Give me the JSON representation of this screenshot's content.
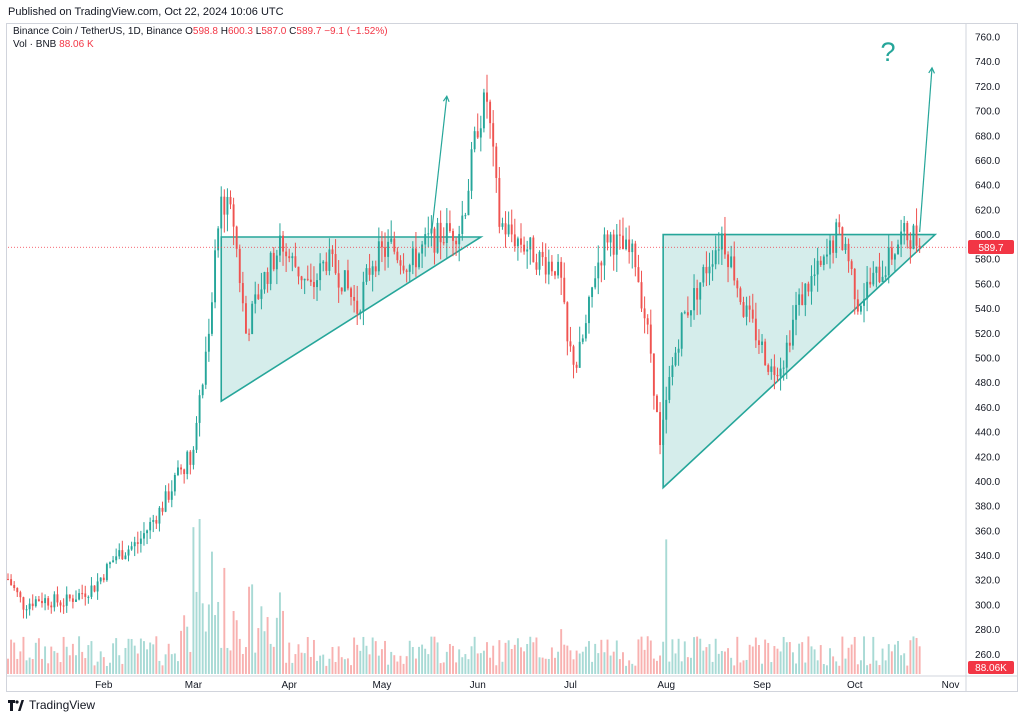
{
  "header": {
    "published": "Published on TradingView.com, Oct 22, 2024 10:06 UTC"
  },
  "legend": {
    "symbol": "Binance Coin / TetherUS, 1D, Binance",
    "open_label": "O",
    "open": "598.8",
    "high_label": "H",
    "high": "600.3",
    "low_label": "L",
    "low": "587.0",
    "close_label": "C",
    "close": "589.7",
    "change": "−9.1 (−1.52%)",
    "volume_label": "Vol · BNB",
    "volume": "88.06 K"
  },
  "price_axis": {
    "last_price_badge": "589.7",
    "last_volume_badge": "88.06K"
  },
  "annotation": {
    "question_mark": "?"
  },
  "footer": {
    "brand": "TradingView"
  },
  "colors": {
    "up": "#26a69a",
    "down": "#ef5350",
    "pattern_fill": "#b2dfdb",
    "pattern_line": "#26a69a",
    "last_price": "#f23645"
  },
  "chart_data": {
    "type": "candlestick",
    "title": "Binance Coin / TetherUS, 1D, Binance",
    "y_ticks": [
      260,
      280,
      300,
      320,
      340,
      360,
      380,
      400,
      420,
      440,
      460,
      480,
      500,
      520,
      540,
      560,
      580,
      600,
      620,
      640,
      660,
      680,
      700,
      720,
      740,
      760
    ],
    "ylim": [
      240,
      770
    ],
    "x_ticks": [
      "Feb",
      "Mar",
      "Apr",
      "May",
      "Jun",
      "Jul",
      "Aug",
      "Sep",
      "Oct",
      "Nov"
    ],
    "x_tick_days": [
      31,
      60,
      91,
      121,
      152,
      182,
      213,
      244,
      274,
      305
    ],
    "xlim": [
      0,
      310
    ],
    "last_price": 589.7,
    "last_day": 295,
    "price_path": [
      [
        0,
        321
      ],
      [
        5,
        300
      ],
      [
        10,
        305
      ],
      [
        18,
        302
      ],
      [
        28,
        315
      ],
      [
        35,
        340
      ],
      [
        42,
        350
      ],
      [
        50,
        380
      ],
      [
        56,
        410
      ],
      [
        60,
        425
      ],
      [
        63,
        480
      ],
      [
        66,
        550
      ],
      [
        69,
        630
      ],
      [
        73,
        610
      ],
      [
        77,
        520
      ],
      [
        82,
        560
      ],
      [
        88,
        590
      ],
      [
        93,
        575
      ],
      [
        98,
        555
      ],
      [
        103,
        580
      ],
      [
        108,
        565
      ],
      [
        113,
        540
      ],
      [
        118,
        580
      ],
      [
        124,
        590
      ],
      [
        130,
        575
      ],
      [
        136,
        595
      ],
      [
        141,
        600
      ],
      [
        146,
        605
      ],
      [
        148,
        625
      ],
      [
        152,
        690
      ],
      [
        155,
        710
      ],
      [
        157,
        660
      ],
      [
        159,
        610
      ],
      [
        163,
        600
      ],
      [
        168,
        590
      ],
      [
        172,
        580
      ],
      [
        177,
        575
      ],
      [
        179,
        560
      ],
      [
        181,
        510
      ],
      [
        184,
        495
      ],
      [
        187,
        525
      ],
      [
        190,
        570
      ],
      [
        194,
        600
      ],
      [
        198,
        590
      ],
      [
        203,
        580
      ],
      [
        208,
        505
      ],
      [
        211,
        425
      ],
      [
        214,
        480
      ],
      [
        218,
        530
      ],
      [
        222,
        550
      ],
      [
        227,
        580
      ],
      [
        231,
        600
      ],
      [
        235,
        570
      ],
      [
        238,
        540
      ],
      [
        242,
        520
      ],
      [
        247,
        490
      ],
      [
        251,
        500
      ],
      [
        255,
        540
      ],
      [
        259,
        560
      ],
      [
        264,
        575
      ],
      [
        268,
        600
      ],
      [
        271,
        592
      ],
      [
        275,
        545
      ],
      [
        279,
        560
      ],
      [
        284,
        575
      ],
      [
        289,
        598
      ],
      [
        293,
        600
      ],
      [
        295,
        589.7
      ]
    ],
    "volume_spikes": [
      [
        60,
        360
      ],
      [
        62,
        380
      ],
      [
        66,
        300
      ],
      [
        70,
        260
      ],
      [
        88,
        200
      ],
      [
        213,
        330
      ],
      [
        179,
        110
      ]
    ],
    "patterns": [
      {
        "type": "ascending-triangle",
        "points": [
          [
            69,
            598
          ],
          [
            69,
            465
          ],
          [
            153,
            598
          ]
        ]
      },
      {
        "type": "ascending-triangle",
        "points": [
          [
            212,
            600
          ],
          [
            212,
            395
          ],
          [
            300,
            600
          ]
        ]
      }
    ],
    "arrows": [
      {
        "from": [
          137,
          600
        ],
        "to": [
          142,
          712
        ]
      },
      {
        "from": [
          295,
          602
        ],
        "to": [
          299,
          735
        ]
      }
    ]
  }
}
